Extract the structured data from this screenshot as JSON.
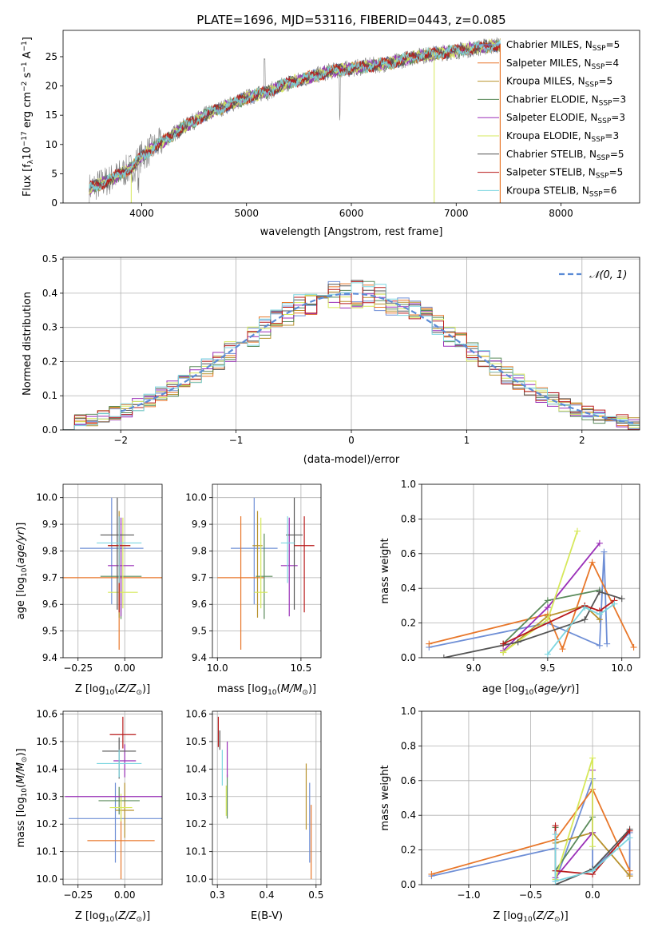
{
  "figure_title": "PLATE=1696, MJD=53116, FIBERID=0443, z=0.085",
  "colors": {
    "Chabrier MILES": "#6f8fd6",
    "Salpeter MILES": "#e8772a",
    "Kroupa MILES": "#b8922e",
    "Chabrier ELODIE": "#5a8a5a",
    "Salpeter ELODIE": "#9a2fb8",
    "Kroupa ELODIE": "#d6e85a",
    "Chabrier STELIB": "#555555",
    "Salpeter STELIB": "#b81a1a",
    "Kroupa STELIB": "#7dd6e0",
    "data": "#7f7f7f",
    "normal": "#5b8bd6"
  },
  "chart_data": [
    {
      "id": "spectrum",
      "type": "line",
      "title": "PLATE=1696, MJD=53116, FIBERID=0443, z=0.085",
      "xlabel": "wavelength [Angstrom, rest frame]",
      "ylabel": "Flux [f_λ 10^-17 erg cm^-2 s^-1 A^-1]",
      "xlim": [
        3250,
        8750
      ],
      "ylim": [
        0,
        29.5
      ],
      "xticks": [
        4000,
        5000,
        6000,
        7000,
        8000
      ],
      "yticks": [
        0,
        5,
        10,
        15,
        20,
        25
      ],
      "grid": false,
      "legend": "upper-right",
      "continuum": {
        "x": [
          3500,
          3700,
          3900,
          4000,
          4200,
          4400,
          4600,
          4800,
          5000,
          5200,
          5400,
          5600,
          5800,
          6000,
          6200,
          6400,
          6600,
          6800,
          7000,
          7200,
          7400
        ],
        "y": [
          2.5,
          4.0,
          6.0,
          8.0,
          10.5,
          13.0,
          15.0,
          16.5,
          18.0,
          19.0,
          20.5,
          21.5,
          22.5,
          23.0,
          23.5,
          24.0,
          25.0,
          25.5,
          26.0,
          26.5,
          27.0
        ]
      },
      "series": [
        {
          "name": "Chabrier MILES",
          "nssp": 5
        },
        {
          "name": "Salpeter MILES",
          "nssp": 4
        },
        {
          "name": "Kroupa MILES",
          "nssp": 5
        },
        {
          "name": "Chabrier ELODIE",
          "nssp": 3
        },
        {
          "name": "Salpeter ELODIE",
          "nssp": 3
        },
        {
          "name": "Kroupa ELODIE",
          "nssp": 3
        },
        {
          "name": "Chabrier STELIB",
          "nssp": 5
        },
        {
          "name": "Salpeter STELIB",
          "nssp": 5
        },
        {
          "name": "Kroupa STELIB",
          "nssp": 6
        }
      ]
    },
    {
      "id": "residuals",
      "type": "line",
      "xlabel": "(data-model)/error",
      "ylabel": "Normed distribution",
      "xlim": [
        -2.5,
        2.5
      ],
      "ylim": [
        0,
        0.505
      ],
      "xticks": [
        -2,
        -1,
        0,
        1,
        2
      ],
      "yticks": [
        0.0,
        0.1,
        0.2,
        0.3,
        0.4,
        0.5
      ],
      "grid": true,
      "legend": "upper-right",
      "reference": {
        "name": "𝒩(0, 1)",
        "mean": 0,
        "sigma": 1
      },
      "bin_width": 0.1
    },
    {
      "id": "z-age",
      "type": "scatter",
      "xlabel": "Z [log10(Z/Z⊙)]",
      "ylabel": "age [log10(age/yr)]",
      "xlim": [
        -0.33,
        0.2
      ],
      "ylim": [
        9.4,
        10.05
      ],
      "xticks": [
        -0.25,
        0.0
      ],
      "yticks": [
        9.4,
        9.5,
        9.6,
        9.7,
        9.8,
        9.9,
        10.0
      ],
      "grid": true,
      "points": [
        {
          "series": "Chabrier MILES",
          "x": -0.07,
          "y": 9.81,
          "xerr": 0.17,
          "yerr": [
            0.21,
            0.19
          ]
        },
        {
          "series": "Salpeter MILES",
          "x": -0.03,
          "y": 9.7,
          "xerr": 0.3,
          "yerr": [
            0.27,
            0.23
          ]
        },
        {
          "series": "Kroupa MILES",
          "x": -0.03,
          "y": 9.82,
          "xerr": 0.06,
          "yerr": [
            0.27,
            0.13
          ]
        },
        {
          "series": "Chabrier ELODIE",
          "x": -0.02,
          "y": 9.705,
          "xerr": 0.11,
          "yerr": [
            0.16,
            0.16
          ]
        },
        {
          "series": "Salpeter ELODIE",
          "x": -0.02,
          "y": 9.745,
          "xerr": 0.07,
          "yerr": [
            0.19,
            0.18
          ]
        },
        {
          "series": "Kroupa ELODIE",
          "x": -0.01,
          "y": 9.645,
          "xerr": 0.08,
          "yerr": [
            0.06,
            0.28
          ]
        },
        {
          "series": "Chabrier STELIB",
          "x": -0.04,
          "y": 9.86,
          "xerr": 0.09,
          "yerr": [
            0.28,
            0.14
          ]
        },
        {
          "series": "Salpeter STELIB",
          "x": -0.03,
          "y": 9.82,
          "xerr": 0.06,
          "yerr": [
            0.25,
            0.11
          ]
        },
        {
          "series": "Kroupa STELIB",
          "x": -0.03,
          "y": 9.83,
          "xerr": 0.12,
          "yerr": [
            0.15,
            0.1
          ]
        }
      ]
    },
    {
      "id": "mass-age",
      "type": "scatter",
      "xlabel": "mass [log10(M/M⊙)]",
      "ylabel": "",
      "xlim": [
        9.97,
        10.62
      ],
      "ylim": [
        9.4,
        10.05
      ],
      "xticks": [
        10.0,
        10.5
      ],
      "yticks": [
        9.4,
        9.5,
        9.6,
        9.7,
        9.8,
        9.9,
        10.0
      ],
      "grid": true,
      "points": [
        {
          "series": "Chabrier MILES",
          "x": 10.22,
          "y": 9.81,
          "xerr": 0.14,
          "yerr": [
            0.21,
            0.19
          ]
        },
        {
          "series": "Salpeter MILES",
          "x": 10.14,
          "y": 9.7,
          "xerr": 0.14,
          "yerr": [
            0.27,
            0.23
          ]
        },
        {
          "series": "Kroupa MILES",
          "x": 10.24,
          "y": 9.82,
          "xerr": 0.03,
          "yerr": [
            0.27,
            0.13
          ]
        },
        {
          "series": "Chabrier ELODIE",
          "x": 10.28,
          "y": 9.705,
          "xerr": 0.05,
          "yerr": [
            0.16,
            0.16
          ]
        },
        {
          "series": "Salpeter ELODIE",
          "x": 10.43,
          "y": 9.745,
          "xerr": 0.05,
          "yerr": [
            0.19,
            0.18
          ]
        },
        {
          "series": "Kroupa ELODIE",
          "x": 10.26,
          "y": 9.645,
          "xerr": 0.04,
          "yerr": [
            0.06,
            0.28
          ]
        },
        {
          "series": "Chabrier STELIB",
          "x": 10.46,
          "y": 9.86,
          "xerr": 0.05,
          "yerr": [
            0.28,
            0.14
          ]
        },
        {
          "series": "Salpeter STELIB",
          "x": 10.52,
          "y": 9.82,
          "xerr": 0.06,
          "yerr": [
            0.25,
            0.11
          ]
        },
        {
          "series": "Kroupa STELIB",
          "x": 10.42,
          "y": 9.83,
          "xerr": 0.04,
          "yerr": [
            0.15,
            0.1
          ]
        }
      ]
    },
    {
      "id": "age-weight",
      "type": "line",
      "xlabel": "age  [log10(age/yr)]",
      "ylabel": "mass weight",
      "xlim": [
        8.65,
        10.12
      ],
      "ylim": [
        0,
        1.0
      ],
      "xticks": [
        9.0,
        9.5,
        10.0
      ],
      "yticks": [
        0.0,
        0.2,
        0.4,
        0.6,
        0.8,
        1.0
      ],
      "grid": true,
      "series": [
        {
          "name": "Chabrier MILES",
          "x": [
            8.7,
            9.5,
            9.85,
            9.88,
            9.9
          ],
          "y": [
            0.06,
            0.2,
            0.07,
            0.61,
            0.08
          ]
        },
        {
          "name": "Salpeter MILES",
          "x": [
            8.7,
            9.5,
            9.6,
            9.8,
            10.08
          ],
          "y": [
            0.08,
            0.25,
            0.05,
            0.55,
            0.06
          ]
        },
        {
          "name": "Kroupa MILES",
          "x": [
            9.2,
            9.5,
            9.75,
            9.85
          ],
          "y": [
            0.03,
            0.24,
            0.3,
            0.22
          ]
        },
        {
          "name": "Chabrier ELODIE",
          "x": [
            9.2,
            9.5,
            9.85
          ],
          "y": [
            0.08,
            0.33,
            0.39
          ]
        },
        {
          "name": "Salpeter ELODIE",
          "x": [
            9.2,
            9.5,
            9.85
          ],
          "y": [
            0.04,
            0.29,
            0.66
          ]
        },
        {
          "name": "Kroupa ELODIE",
          "x": [
            9.2,
            9.5,
            9.7
          ],
          "y": [
            0.03,
            0.22,
            0.73
          ]
        },
        {
          "name": "Chabrier STELIB",
          "x": [
            8.8,
            9.3,
            9.75,
            9.85,
            10.0
          ],
          "y": [
            0.0,
            0.09,
            0.22,
            0.38,
            0.34
          ]
        },
        {
          "name": "Salpeter STELIB",
          "x": [
            9.2,
            9.75,
            9.85,
            9.95
          ],
          "y": [
            0.08,
            0.3,
            0.27,
            0.33
          ]
        },
        {
          "name": "Kroupa STELIB",
          "x": [
            9.5,
            9.75,
            9.85,
            9.95
          ],
          "y": [
            0.02,
            0.29,
            0.25,
            0.31
          ]
        }
      ]
    },
    {
      "id": "z-mass",
      "type": "scatter",
      "xlabel": "Z [log10(Z/Z⊙)]",
      "ylabel": "mass [log10(M/M⊙)]",
      "xlim": [
        -0.33,
        0.2
      ],
      "ylim": [
        9.98,
        10.61
      ],
      "xticks": [
        -0.25,
        0.0
      ],
      "yticks": [
        10.0,
        10.1,
        10.2,
        10.3,
        10.4,
        10.5,
        10.6
      ],
      "grid": true,
      "points": [
        {
          "series": "Chabrier MILES",
          "x": -0.05,
          "y": 10.22,
          "xerr": 0.25,
          "yerr": [
            0.16,
            0.13
          ]
        },
        {
          "series": "Salpeter MILES",
          "x": -0.02,
          "y": 10.14,
          "xerr": 0.18,
          "yerr": [
            0.14,
            0.16
          ]
        },
        {
          "series": "Kroupa MILES",
          "x": 0.0,
          "y": 10.25,
          "xerr": 0.05,
          "yerr": [
            0.1,
            0.1
          ]
        },
        {
          "series": "Chabrier ELODIE",
          "x": -0.03,
          "y": 10.285,
          "xerr": 0.11,
          "yerr": [
            0.05,
            0.05
          ]
        },
        {
          "series": "Salpeter ELODIE",
          "x": 0.0,
          "y": 10.43,
          "xerr": 0.06,
          "yerr": [
            0.06,
            0.06
          ]
        },
        {
          "series": "Kroupa ELODIE",
          "x": -0.02,
          "y": 10.26,
          "xerr": 0.06,
          "yerr": [
            0.05,
            0.05
          ]
        },
        {
          "series": "Chabrier STELIB",
          "x": -0.03,
          "y": 10.465,
          "xerr": 0.09,
          "yerr": [
            0.1,
            0.05
          ]
        },
        {
          "series": "Salpeter STELIB",
          "x": -0.01,
          "y": 10.525,
          "xerr": 0.07,
          "yerr": [
            0.05,
            0.065
          ]
        },
        {
          "series": "Kroupa STELIB",
          "x": -0.03,
          "y": 10.42,
          "xerr": 0.12,
          "yerr": [
            0.05,
            0.05
          ]
        },
        {
          "series": "Salpeter ELODIE",
          "x": -0.02,
          "y": 10.3,
          "xerr": 0.3,
          "yerr": [
            0.0,
            0.0
          ],
          "band": true
        }
      ]
    },
    {
      "id": "ebv-mass",
      "type": "scatter",
      "xlabel": "E(B-V)",
      "ylabel": "",
      "xlim": [
        0.29,
        0.51
      ],
      "ylim": [
        9.98,
        10.61
      ],
      "xticks": [
        0.3,
        0.4,
        0.5
      ],
      "yticks": [
        10.0,
        10.1,
        10.2,
        10.3,
        10.4,
        10.5,
        10.6
      ],
      "grid": true,
      "points": [
        {
          "series": "Chabrier MILES",
          "x": 0.487,
          "y": 10.22,
          "yerr": [
            0.16,
            0.13
          ]
        },
        {
          "series": "Salpeter MILES",
          "x": 0.49,
          "y": 10.14,
          "yerr": [
            0.14,
            0.13
          ]
        },
        {
          "series": "Kroupa MILES",
          "x": 0.48,
          "y": 10.3,
          "yerr": [
            0.12,
            0.12
          ]
        },
        {
          "series": "Chabrier ELODIE",
          "x": 0.32,
          "y": 10.3,
          "yerr": [
            0.08,
            0.08
          ]
        },
        {
          "series": "Salpeter ELODIE",
          "x": 0.32,
          "y": 10.43,
          "yerr": [
            0.06,
            0.07
          ]
        },
        {
          "series": "Kroupa ELODIE",
          "x": 0.318,
          "y": 10.28,
          "yerr": [
            0.05,
            0.06
          ]
        },
        {
          "series": "Chabrier STELIB",
          "x": 0.305,
          "y": 10.5,
          "yerr": [
            0.03,
            0.04
          ]
        },
        {
          "series": "Salpeter STELIB",
          "x": 0.302,
          "y": 10.53,
          "yerr": [
            0.05,
            0.06
          ]
        },
        {
          "series": "Kroupa STELIB",
          "x": 0.31,
          "y": 10.4,
          "yerr": [
            0.06,
            0.07
          ]
        }
      ]
    },
    {
      "id": "z-weight",
      "type": "line",
      "xlabel": "Z [log10(Z/Z⊙)]",
      "ylabel": "mass weight",
      "xlim": [
        -1.38,
        0.38
      ],
      "ylim": [
        0,
        1.0
      ],
      "xticks": [
        -1.0,
        -0.5,
        0.0
      ],
      "yticks": [
        0.0,
        0.2,
        0.4,
        0.6,
        0.8,
        1.0
      ],
      "grid": true,
      "series": [
        {
          "name": "Chabrier MILES",
          "x": [
            -1.3,
            -0.3,
            -0.3,
            0.0,
            0.0,
            0.3,
            0.3
          ],
          "y": [
            0.05,
            0.21,
            0.02,
            0.61,
            0.08,
            0.3,
            0.06
          ]
        },
        {
          "name": "Salpeter MILES",
          "x": [
            -1.3,
            -0.3,
            0.0,
            0.3,
            0.3
          ],
          "y": [
            0.06,
            0.26,
            0.55,
            0.08,
            0.05
          ]
        },
        {
          "name": "Kroupa MILES",
          "x": [
            -0.3,
            0.0,
            0.3
          ],
          "y": [
            0.24,
            0.3,
            0.05
          ]
        },
        {
          "name": "Chabrier ELODIE",
          "x": [
            -0.3,
            -0.3,
            0.0,
            0.0
          ],
          "y": [
            0.33,
            0.08,
            0.39,
            0.3
          ]
        },
        {
          "name": "Salpeter ELODIE",
          "x": [
            -0.3,
            0.0,
            0.0
          ],
          "y": [
            0.04,
            0.3,
            0.66
          ]
        },
        {
          "name": "Kroupa ELODIE",
          "x": [
            -0.3,
            0.0,
            0.0
          ],
          "y": [
            0.03,
            0.73,
            0.22
          ]
        },
        {
          "name": "Chabrier STELIB",
          "x": [
            -0.3,
            0.0,
            0.3
          ],
          "y": [
            0.0,
            0.09,
            0.32
          ]
        },
        {
          "name": "Salpeter STELIB",
          "x": [
            -0.3,
            -0.3,
            0.0,
            0.3
          ],
          "y": [
            0.34,
            0.08,
            0.06,
            0.31
          ]
        },
        {
          "name": "Kroupa STELIB",
          "x": [
            -0.3,
            -0.3,
            0.0,
            0.3
          ],
          "y": [
            0.29,
            0.02,
            0.08,
            0.27
          ]
        }
      ]
    }
  ]
}
